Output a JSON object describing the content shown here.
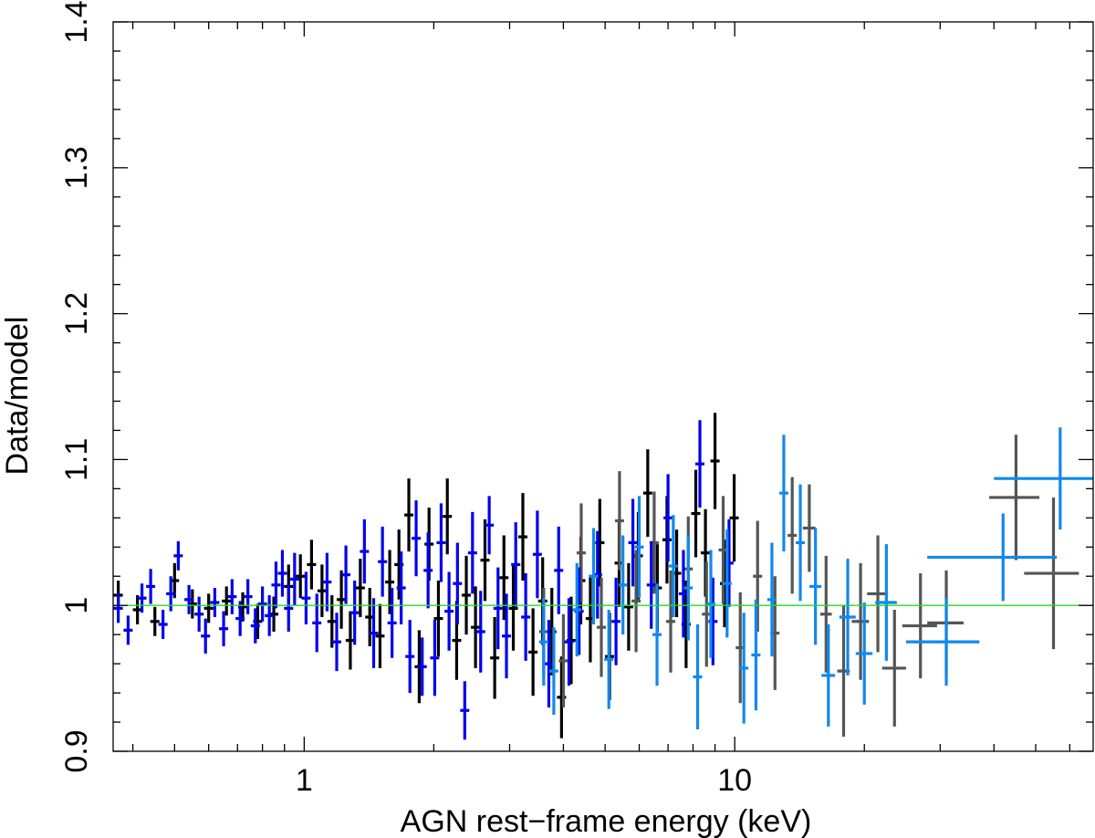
{
  "chart_data": {
    "type": "scatter",
    "title": "",
    "xlabel": "AGN rest−frame energy (keV)",
    "ylabel": "Data/model",
    "xscale": "log",
    "xlim": [
      0.36,
      68
    ],
    "ylim": [
      0.9,
      1.4
    ],
    "xticks": [
      {
        "value": 1,
        "label": "1"
      },
      {
        "value": 10,
        "label": "10"
      }
    ],
    "yticks": [
      {
        "value": 0.9,
        "label": "0.9"
      },
      {
        "value": 1.0,
        "label": "1"
      },
      {
        "value": 1.1,
        "label": "1.1"
      },
      {
        "value": 1.2,
        "label": "1.2"
      },
      {
        "value": 1.3,
        "label": "1.3"
      },
      {
        "value": 1.4,
        "label": "1.4"
      }
    ],
    "reference_line": {
      "y": 1.0,
      "color": "#22dd22"
    },
    "legend": "none",
    "series": [
      {
        "color": "#000000",
        "points": [
          [
            0.37,
            1.007,
            0.008,
            0.01
          ],
          [
            0.41,
            0.997,
            0.008,
            0.01
          ],
          [
            0.45,
            0.989,
            0.008,
            0.01
          ],
          [
            0.5,
            1.017,
            0.008,
            0.012
          ],
          [
            0.55,
            1.001,
            0.008,
            0.01
          ],
          [
            0.6,
            0.998,
            0.008,
            0.01
          ],
          [
            0.66,
            1.003,
            0.008,
            0.01
          ],
          [
            0.72,
            0.999,
            0.008,
            0.01
          ],
          [
            0.78,
            0.989,
            0.007,
            0.012
          ],
          [
            0.85,
            0.994,
            0.007,
            0.012
          ],
          [
            0.92,
            1.013,
            0.007,
            0.015
          ],
          [
            0.98,
            1.02,
            0.007,
            0.015
          ],
          [
            1.04,
            1.028,
            0.006,
            0.017
          ],
          [
            1.1,
            1.01,
            0.006,
            0.018
          ],
          [
            1.16,
            0.989,
            0.006,
            0.018
          ],
          [
            1.22,
            1.004,
            0.006,
            0.02
          ],
          [
            1.28,
            0.976,
            0.006,
            0.02
          ],
          [
            1.35,
            1.012,
            0.006,
            0.02
          ],
          [
            1.42,
            0.992,
            0.006,
            0.02
          ],
          [
            1.5,
            0.979,
            0.006,
            0.022
          ],
          [
            1.58,
            1.016,
            0.006,
            0.022
          ],
          [
            1.66,
            1.028,
            0.007,
            0.024
          ],
          [
            1.75,
            1.062,
            0.007,
            0.025
          ],
          [
            1.85,
            0.958,
            0.007,
            0.025
          ],
          [
            1.95,
            1.042,
            0.007,
            0.025
          ],
          [
            2.05,
            0.991,
            0.007,
            0.026
          ],
          [
            2.15,
            1.061,
            0.008,
            0.026
          ],
          [
            2.26,
            0.976,
            0.008,
            0.027
          ],
          [
            2.38,
            1.007,
            0.008,
            0.027
          ],
          [
            2.5,
            0.985,
            0.008,
            0.028
          ],
          [
            2.63,
            1.031,
            0.009,
            0.028
          ],
          [
            2.77,
            0.964,
            0.009,
            0.028
          ],
          [
            2.91,
            1.019,
            0.009,
            0.029
          ],
          [
            3.06,
            0.998,
            0.01,
            0.029
          ],
          [
            3.22,
            1.047,
            0.01,
            0.03
          ],
          [
            3.4,
            0.968,
            0.01,
            0.03
          ],
          [
            3.58,
            1.003,
            0.01,
            0.03
          ],
          [
            3.76,
            0.982,
            0.011,
            0.03
          ],
          [
            3.96,
            0.937,
            0.011,
            0.028
          ],
          [
            4.17,
            0.976,
            0.012,
            0.03
          ],
          [
            4.39,
            1.017,
            0.012,
            0.03
          ],
          [
            4.62,
            0.991,
            0.013,
            0.03
          ],
          [
            4.86,
            1.043,
            0.013,
            0.03
          ],
          [
            5.12,
            0.965,
            0.014,
            0.03
          ],
          [
            5.39,
            1.029,
            0.015,
            0.03
          ],
          [
            5.67,
            0.999,
            0.015,
            0.03
          ],
          [
            5.97,
            1.034,
            0.016,
            0.03
          ],
          [
            6.28,
            1.077,
            0.017,
            0.03
          ],
          [
            6.61,
            1.012,
            0.018,
            0.03
          ],
          [
            6.96,
            1.045,
            0.019,
            0.03
          ],
          [
            7.33,
            1.022,
            0.02,
            0.03
          ],
          [
            7.71,
            0.987,
            0.02,
            0.03
          ],
          [
            8.12,
            1.063,
            0.022,
            0.03
          ],
          [
            8.55,
            1.036,
            0.023,
            0.03
          ],
          [
            9.0,
            1.099,
            0.02,
            0.033
          ],
          [
            9.47,
            1.015,
            0.025,
            0.03
          ],
          [
            9.97,
            1.06,
            0.027,
            0.03
          ]
        ]
      },
      {
        "color": "#555555",
        "points": [
          [
            3.6,
            0.982,
            0.05,
            0.03
          ],
          [
            4.0,
            0.962,
            0.06,
            0.032
          ],
          [
            4.4,
            1.036,
            0.06,
            0.034
          ],
          [
            4.9,
            0.985,
            0.07,
            0.034
          ],
          [
            5.4,
            1.058,
            0.07,
            0.034
          ],
          [
            5.9,
            1.003,
            0.08,
            0.035
          ],
          [
            6.5,
            1.043,
            0.09,
            0.035
          ],
          [
            7.1,
            0.989,
            0.1,
            0.035
          ],
          [
            7.8,
            1.025,
            0.11,
            0.036
          ],
          [
            8.6,
            0.994,
            0.12,
            0.036
          ],
          [
            9.4,
            1.038,
            0.13,
            0.037
          ],
          [
            10.3,
            0.971,
            0.14,
            0.038
          ],
          [
            11.3,
            1.02,
            0.15,
            0.038
          ],
          [
            12.4,
            0.981,
            0.17,
            0.039
          ],
          [
            13.6,
            1.048,
            0.18,
            0.04
          ],
          [
            14.9,
            1.053,
            0.5,
            0.03
          ],
          [
            16.3,
            0.994,
            0.5,
            0.04
          ],
          [
            17.9,
            0.955,
            0.6,
            0.045
          ],
          [
            19.6,
            0.989,
            0.9,
            0.04
          ],
          [
            21.5,
            1.008,
            1.2,
            0.04
          ],
          [
            23.5,
            0.957,
            1.5,
            0.04
          ],
          [
            27.0,
            0.986,
            2.5,
            0.036
          ],
          [
            31.0,
            0.988,
            3.0,
            0.036
          ],
          [
            45.0,
            1.074,
            6,
            0.043
          ],
          [
            55.0,
            1.022,
            8,
            0.052
          ]
        ]
      },
      {
        "color": "#0000ee",
        "points": [
          [
            0.37,
            0.998,
            0.006,
            0.01
          ],
          [
            0.39,
            0.983,
            0.006,
            0.01
          ],
          [
            0.42,
            1.005,
            0.006,
            0.01
          ],
          [
            0.44,
            1.013,
            0.006,
            0.012
          ],
          [
            0.47,
            0.987,
            0.006,
            0.01
          ],
          [
            0.49,
            1.008,
            0.006,
            0.012
          ],
          [
            0.51,
            1.034,
            0.006,
            0.01
          ],
          [
            0.54,
            1.004,
            0.006,
            0.01
          ],
          [
            0.57,
            0.994,
            0.006,
            0.012
          ],
          [
            0.59,
            0.979,
            0.006,
            0.012
          ],
          [
            0.62,
            1.002,
            0.006,
            0.01
          ],
          [
            0.65,
            0.984,
            0.006,
            0.012
          ],
          [
            0.68,
            1.006,
            0.006,
            0.012
          ],
          [
            0.71,
            0.991,
            0.006,
            0.012
          ],
          [
            0.74,
            1.006,
            0.006,
            0.012
          ],
          [
            0.77,
            0.986,
            0.006,
            0.012
          ],
          [
            0.8,
            1.001,
            0.006,
            0.012
          ],
          [
            0.83,
            0.993,
            0.006,
            0.014
          ],
          [
            0.86,
            1.014,
            0.006,
            0.016
          ],
          [
            0.89,
            1.022,
            0.006,
            0.016
          ],
          [
            0.92,
            0.998,
            0.006,
            0.016
          ],
          [
            0.95,
            1.018,
            0.006,
            0.018
          ],
          [
            1.01,
            1.005,
            0.006,
            0.018
          ],
          [
            1.07,
            0.988,
            0.006,
            0.02
          ],
          [
            1.13,
            1.016,
            0.006,
            0.02
          ],
          [
            1.19,
            0.975,
            0.006,
            0.02
          ],
          [
            1.25,
            1.021,
            0.006,
            0.02
          ],
          [
            1.31,
            0.995,
            0.006,
            0.022
          ],
          [
            1.38,
            1.037,
            0.006,
            0.022
          ],
          [
            1.45,
            0.981,
            0.006,
            0.024
          ],
          [
            1.52,
            1.03,
            0.006,
            0.024
          ],
          [
            1.6,
            0.988,
            0.007,
            0.024
          ],
          [
            1.68,
            1.012,
            0.007,
            0.025
          ],
          [
            1.76,
            0.965,
            0.007,
            0.025
          ],
          [
            1.82,
            1.046,
            0.007,
            0.026
          ],
          [
            1.88,
            0.958,
            0.007,
            0.02
          ],
          [
            1.94,
            1.024,
            0.007,
            0.026
          ],
          [
            2.01,
            0.964,
            0.007,
            0.026
          ],
          [
            2.08,
            1.043,
            0.007,
            0.027
          ],
          [
            2.17,
            0.996,
            0.008,
            0.027
          ],
          [
            2.27,
            1.015,
            0.008,
            0.028
          ],
          [
            2.36,
            0.928,
            0.008,
            0.02
          ],
          [
            2.46,
            1.036,
            0.008,
            0.028
          ],
          [
            2.57,
            0.982,
            0.008,
            0.028
          ],
          [
            2.69,
            1.055,
            0.008,
            0.02
          ],
          [
            2.82,
            0.998,
            0.009,
            0.028
          ],
          [
            2.95,
            0.979,
            0.009,
            0.029
          ],
          [
            3.1,
            1.028,
            0.009,
            0.029
          ],
          [
            3.27,
            0.992,
            0.01,
            0.03
          ],
          [
            3.48,
            1.035,
            0.01,
            0.03
          ],
          [
            3.7,
            0.96,
            0.01,
            0.03
          ],
          [
            3.9,
            1.024,
            0.011,
            0.03
          ],
          [
            4.12,
            0.975,
            0.012,
            0.03
          ],
          [
            4.35,
            0.996,
            0.012,
            0.03
          ],
          [
            4.8,
            1.021,
            0.013,
            0.03
          ],
          [
            5.3,
            0.989,
            0.014,
            0.03
          ],
          [
            5.8,
            1.043,
            0.015,
            0.03
          ],
          [
            6.4,
            1.014,
            0.016,
            0.03
          ],
          [
            7.0,
            1.06,
            0.018,
            0.03
          ],
          [
            7.6,
            1.008,
            0.02,
            0.03
          ],
          [
            8.3,
            1.097,
            0.02,
            0.03
          ],
          [
            8.9,
            0.989,
            0.024,
            0.03
          ],
          [
            9.7,
            1.029,
            0.026,
            0.03
          ]
        ]
      },
      {
        "color": "#1188ee",
        "points": [
          [
            3.6,
            0.975,
            0.05,
            0.03
          ],
          [
            3.8,
            0.955,
            0.05,
            0.03
          ],
          [
            4.3,
            0.997,
            0.06,
            0.032
          ],
          [
            4.7,
            1.02,
            0.06,
            0.033
          ],
          [
            5.1,
            0.963,
            0.06,
            0.034
          ],
          [
            5.5,
            1.014,
            0.07,
            0.034
          ],
          [
            6.0,
            1.04,
            0.08,
            0.035
          ],
          [
            6.6,
            0.98,
            0.09,
            0.035
          ],
          [
            7.2,
            1.027,
            0.1,
            0.035
          ],
          [
            7.8,
            1.012,
            0.11,
            0.036
          ],
          [
            8.2,
            0.951,
            0.12,
            0.036
          ],
          [
            8.8,
            1.001,
            0.12,
            0.037
          ],
          [
            9.6,
            1.015,
            0.13,
            0.037
          ],
          [
            10.5,
            0.957,
            0.14,
            0.038
          ],
          [
            11.2,
            0.966,
            0.15,
            0.038
          ],
          [
            12.2,
            1.004,
            0.16,
            0.039
          ],
          [
            13.0,
            1.077,
            0.17,
            0.04
          ],
          [
            14.2,
            1.043,
            0.18,
            0.04
          ],
          [
            15.4,
            1.013,
            0.5,
            0.04
          ],
          [
            16.5,
            0.952,
            0.6,
            0.035
          ],
          [
            18.3,
            0.992,
            0.8,
            0.04
          ],
          [
            20.0,
            0.967,
            0.9,
            0.035
          ],
          [
            22.5,
            1.002,
            1.3,
            0.04
          ],
          [
            31.0,
            0.975,
            6,
            0.03
          ],
          [
            42.0,
            1.033,
            14,
            0.03
          ],
          [
            57.0,
            1.087,
            17,
            0.035
          ]
        ]
      }
    ]
  }
}
